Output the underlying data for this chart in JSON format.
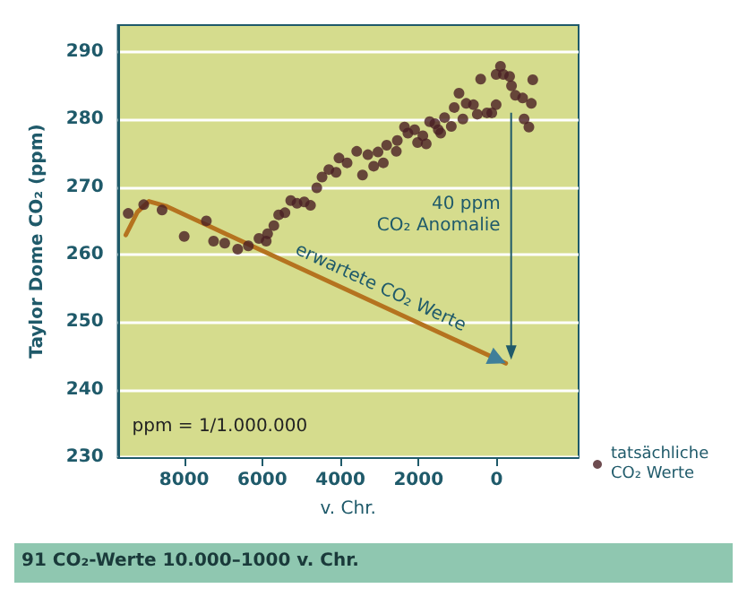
{
  "chart_data": {
    "type": "scatter",
    "xlabel": "v. Chr.",
    "ylabel": "Taylor Dome CO₂ (ppm)",
    "xlim": [
      9700,
      -2100
    ],
    "xticks": [
      8000,
      6000,
      4000,
      2000,
      0
    ],
    "ylim": [
      230,
      294
    ],
    "yticks": [
      230,
      240,
      250,
      260,
      270,
      280,
      290
    ],
    "grid": "y",
    "legend": "bottom right",
    "marker": "circle",
    "series": [
      {
        "name": "tatsächliche CO₂ Werte",
        "color": "#4a1f24",
        "x": [
          9434,
          9037,
          8567,
          8000,
          7433,
          7248,
          6963,
          6630,
          6358,
          6086,
          5900,
          5864,
          5704,
          5581,
          5420,
          5272,
          5111,
          4926,
          4766,
          4605,
          4470,
          4296,
          4111,
          4037,
          3829,
          3582,
          3434,
          3296,
          3148,
          3037,
          2901,
          2815,
          2568,
          2543,
          2358,
          2271,
          2099,
          2024,
          1889,
          1802,
          1715,
          1580,
          1493,
          1432,
          1333,
          1160,
          1086,
          963,
          864,
          778,
          593,
          494,
          408,
          247,
          123,
          12,
          12,
          -99,
          -173,
          -333,
          -382,
          -481,
          -667,
          -704,
          -827,
          -889,
          -926
        ],
        "values": [
          266.1,
          267.4,
          266.6,
          262.7,
          265,
          262,
          261.7,
          260.8,
          261.3,
          262.4,
          262,
          263.1,
          264.3,
          265.9,
          266.2,
          268,
          267.6,
          267.8,
          267.3,
          269.9,
          271.5,
          272.6,
          272.2,
          274.3,
          273.6,
          275.3,
          271.8,
          274.8,
          273.1,
          275.2,
          273.6,
          276.2,
          275.3,
          276.9,
          278.9,
          278,
          278.5,
          276.6,
          277.6,
          276.4,
          279.7,
          279.4,
          278.5,
          278,
          280.3,
          279,
          281.8,
          283.9,
          280.1,
          282.4,
          282.2,
          280.8,
          286,
          281,
          281,
          282.2,
          286.7,
          287.9,
          286.7,
          286.4,
          285,
          283.6,
          283.2,
          280.1,
          278.9,
          282.4,
          285.9
        ]
      },
      {
        "name": "erwartete CO₂ Werte",
        "type": "line",
        "color": "#b5731f",
        "marker": "none",
        "x": [
          9496,
          9200,
          8904,
          8473,
          -235
        ],
        "values": [
          262.9,
          266.3,
          267.9,
          267.2,
          243.9
        ]
      }
    ],
    "annotations": [
      "40 ppm CO₂ Anomalie",
      "ppm = 1/1.000.000",
      "91 CO₂-Werte 10.000–1000 v. Chr."
    ]
  }
}
